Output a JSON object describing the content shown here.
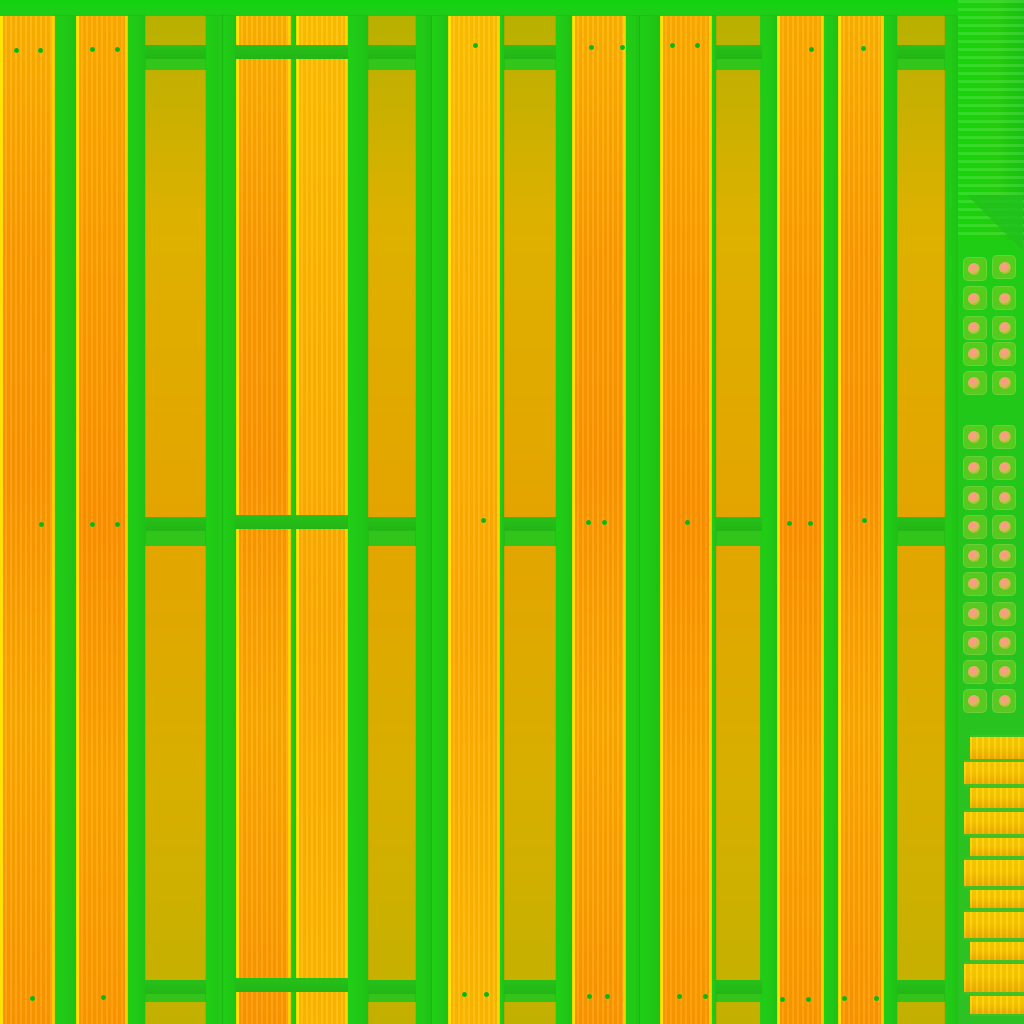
{
  "palette": {
    "green": "#22c817",
    "orange": "#ff9b00",
    "yellow": "#ffcc00",
    "pink": "#ff9b87"
  },
  "scene": {
    "subject": "pallet-texture-atlas"
  }
}
